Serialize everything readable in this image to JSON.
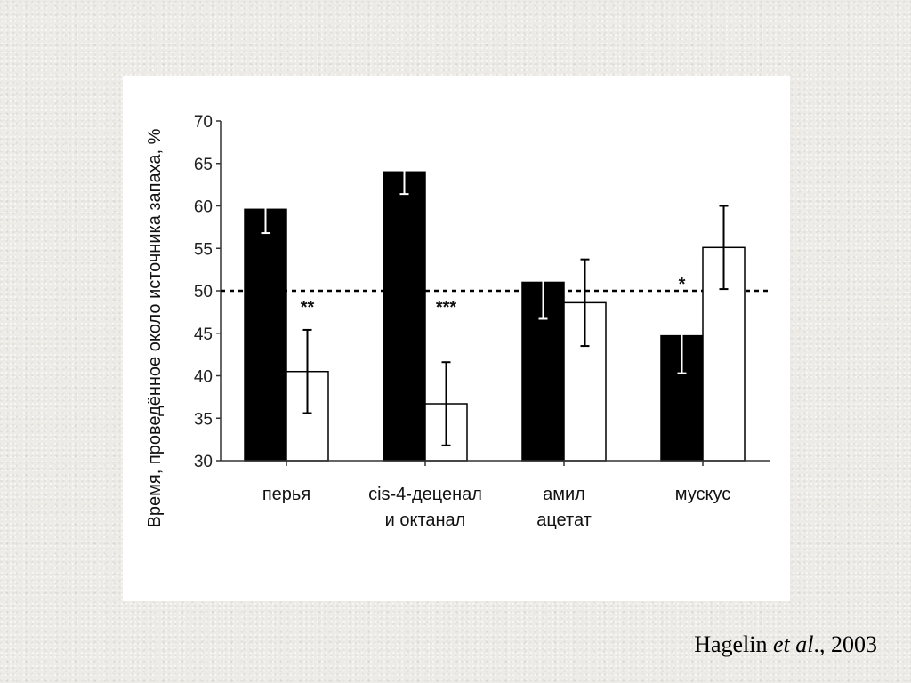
{
  "colors": {
    "background": "#ecebe6",
    "panel": "#ffffff",
    "series_filled": "#000000",
    "series_open": "#ffffff"
  },
  "citation": {
    "author": "Hagelin ",
    "etal": "et al",
    "rest": "., 2003"
  },
  "chart_data": {
    "type": "bar",
    "ylabel": "Время, проведённое около источника запаха, %",
    "xlabel": "",
    "ylim": [
      30,
      70
    ],
    "yticks": [
      30,
      35,
      40,
      45,
      50,
      55,
      60,
      65,
      70
    ],
    "reference_line": 50,
    "grid": false,
    "categories": [
      [
        "перья"
      ],
      [
        "cis-4-деценал",
        "и октанал"
      ],
      [
        "амил",
        "ацетат"
      ],
      [
        "мускус"
      ]
    ],
    "series": [
      {
        "fill": "#000000",
        "values": [
          59.6,
          64.0,
          51.0,
          44.7
        ],
        "errors": [
          2.8,
          2.6,
          4.3,
          4.4
        ]
      },
      {
        "fill": "#ffffff",
        "values": [
          40.5,
          36.7,
          48.6,
          55.1
        ],
        "errors": [
          4.9,
          4.9,
          5.1,
          4.9
        ]
      }
    ],
    "significance": [
      {
        "category": 0,
        "label": "**"
      },
      {
        "category": 1,
        "label": "***"
      },
      {
        "category": 3,
        "label": "*"
      }
    ]
  }
}
